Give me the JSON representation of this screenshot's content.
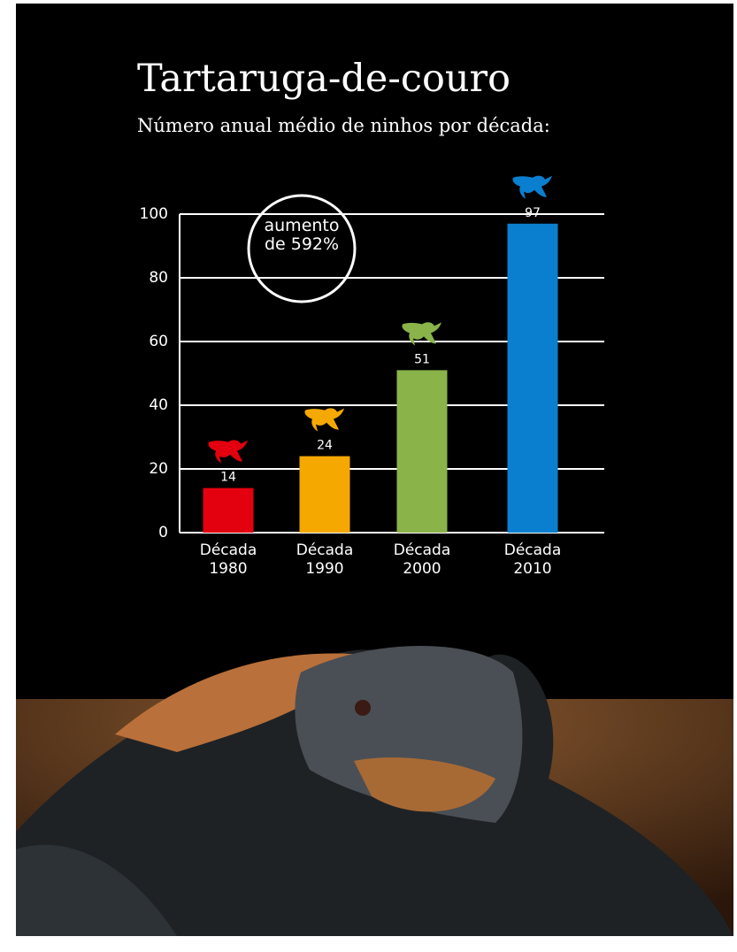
{
  "chart_data": {
    "type": "bar",
    "title": "Tartaruga-de-couro",
    "subtitle": "Número anual médio de ninhos por década:",
    "annotation": "aumento de 592%",
    "categories": [
      "Década 1980",
      "Década 1990",
      "Década 2000",
      "Década 2010"
    ],
    "values": [
      14,
      24,
      51,
      97
    ],
    "colors": [
      "#e3000f",
      "#f5a800",
      "#8ab34a",
      "#0a7fcf"
    ],
    "ylim": [
      0,
      100
    ],
    "yticks": [
      0,
      20,
      40,
      60,
      80,
      100
    ],
    "grid": true
  }
}
